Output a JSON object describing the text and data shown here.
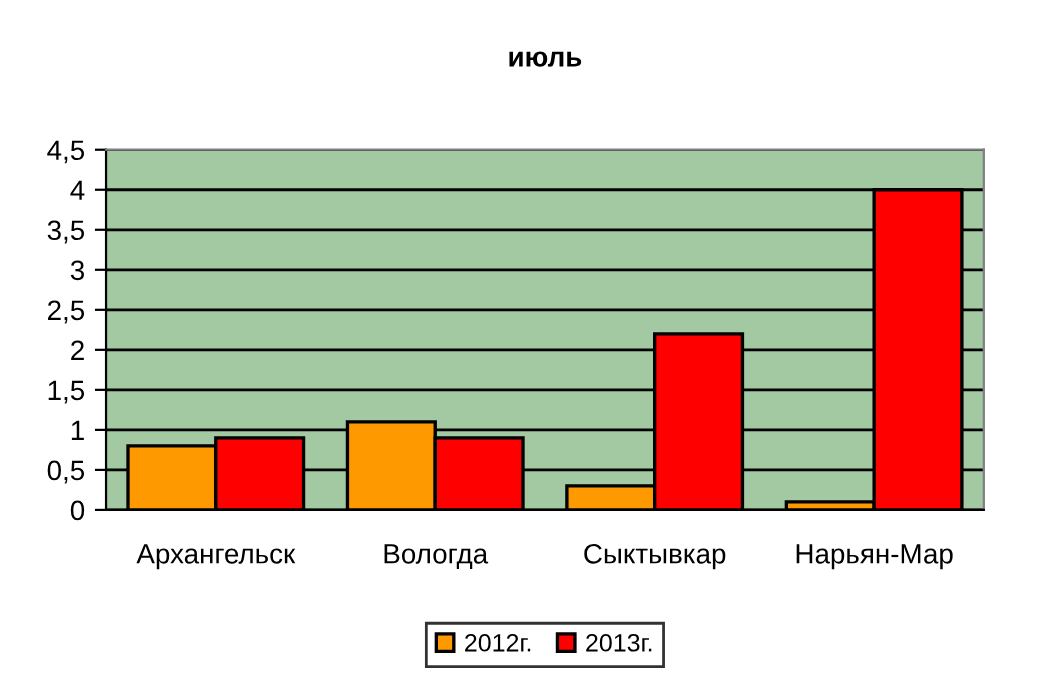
{
  "chart_data": {
    "type": "bar",
    "title": "июль",
    "categories": [
      "Архангельск",
      "Вологда",
      "Сыктывкар",
      "Нарьян-Мар"
    ],
    "series": [
      {
        "name": "2012г.",
        "color": "#ff9900",
        "values": [
          0.8,
          1.1,
          0.3,
          0.1
        ]
      },
      {
        "name": "2013г.",
        "color": "#ff0000",
        "values": [
          0.9,
          0.9,
          2.2,
          4.0
        ]
      }
    ],
    "ylim": [
      0,
      4.5
    ],
    "yticks": [
      0,
      {
        "value": 0.5,
        "label": "0,5"
      },
      1,
      {
        "value": 1.5,
        "label": "1,5"
      },
      2,
      {
        "value": 2.5,
        "label": "2,5"
      },
      3,
      {
        "value": 3.5,
        "label": "3,5"
      },
      4,
      {
        "value": 4.5,
        "label": "4,5"
      }
    ],
    "grid": "y",
    "legend": "bottom"
  }
}
